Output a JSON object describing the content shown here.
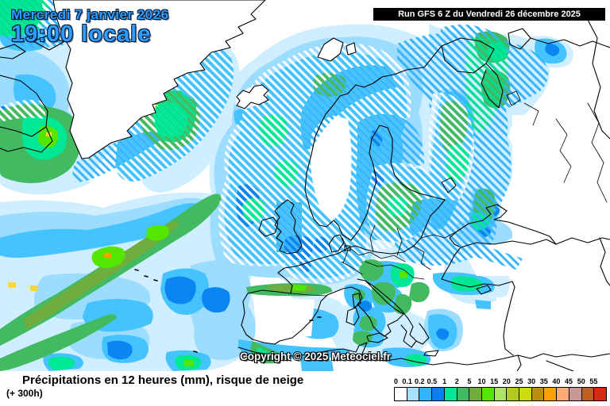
{
  "header": {
    "date_line1": "Mercredi 7 janvier 2026",
    "date_line2": "19:00 locale",
    "run_info": "Run GFS 6 Z du Vendredi 26 décembre 2025"
  },
  "map": {
    "copyright": "Copyright © 2025 Meteociel.fr",
    "region": "Europe / Atlantique Nord",
    "hatching_meaning": "risque de neige"
  },
  "footer": {
    "title": "Précipitations en 12 heures (mm), risque de neige",
    "subtitle": "(+ 300h)"
  },
  "legend": {
    "unit": "mm",
    "stops": [
      {
        "label": "0",
        "color": "#ffffff"
      },
      {
        "label": "0.1",
        "color": "#a6e2ff"
      },
      {
        "label": "0.2",
        "color": "#2eb5fb"
      },
      {
        "label": "0.5",
        "color": "#0680f0"
      },
      {
        "label": "1",
        "color": "#00e895"
      },
      {
        "label": "2",
        "color": "#42ba62"
      },
      {
        "label": "5",
        "color": "#6fae3e"
      },
      {
        "label": "10",
        "color": "#55e600"
      },
      {
        "label": "15",
        "color": "#abe65e"
      },
      {
        "label": "20",
        "color": "#b2ca1c"
      },
      {
        "label": "25",
        "color": "#ccdc10"
      },
      {
        "label": "30",
        "color": "#bd8e0b"
      },
      {
        "label": "35",
        "color": "#ff9f00"
      },
      {
        "label": "40",
        "color": "#ffaa77"
      },
      {
        "label": "45",
        "color": "#c79896"
      },
      {
        "label": "50",
        "color": "#bd5f21"
      },
      {
        "label": "55",
        "color": "#d62a14"
      }
    ]
  },
  "colors": {
    "date_text": "#2f9dff",
    "run_bg": "#000000",
    "run_text": "#ffffff",
    "precip_pale": "#cfeeff",
    "precip_light": "#9bdcff",
    "precip_cyan": "#45c3ff",
    "precip_blue": "#0a86f0",
    "precip_green": "#42ba62",
    "precip_springgreen": "#00e895",
    "precip_brightgreen": "#55e600"
  }
}
